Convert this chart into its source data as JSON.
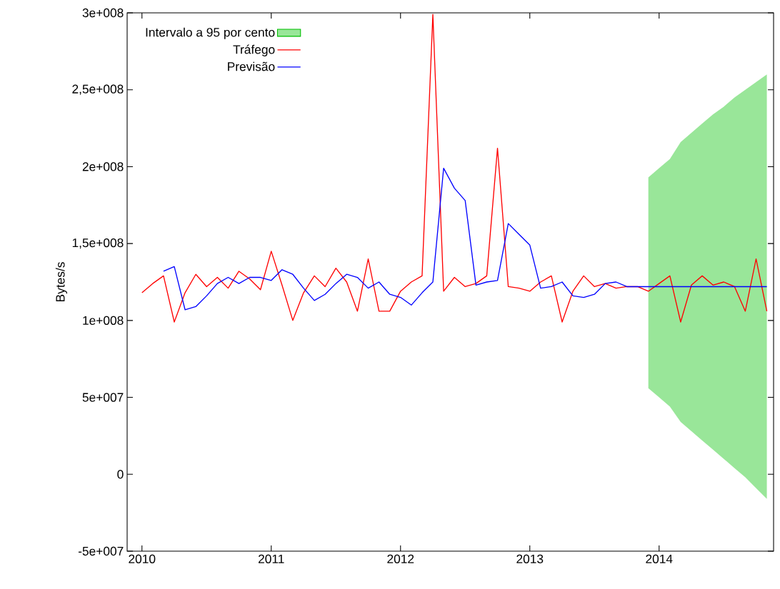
{
  "chart_data": {
    "type": "line",
    "ylabel": "Bytes/s",
    "xlim": [
      "2009-11-20",
      "2014-11-20"
    ],
    "xticks": [
      {
        "value": "2010-01",
        "label": "2010"
      },
      {
        "value": "2011-01",
        "label": "2011"
      },
      {
        "value": "2012-01",
        "label": "2012"
      },
      {
        "value": "2013-01",
        "label": "2013"
      },
      {
        "value": "2014-01",
        "label": "2014"
      }
    ],
    "ylim": [
      -50000000.0,
      300000000.0
    ],
    "yticks": [
      {
        "value": -50000000.0,
        "label": "-5e+007"
      },
      {
        "value": 0,
        "label": "0"
      },
      {
        "value": 50000000.0,
        "label": "5e+007"
      },
      {
        "value": 100000000.0,
        "label": "1e+008"
      },
      {
        "value": 150000000.0,
        "label": "1,5e+008"
      },
      {
        "value": 200000000.0,
        "label": "2e+008"
      },
      {
        "value": 250000000.0,
        "label": "2,5e+008"
      },
      {
        "value": 300000000.0,
        "label": "3e+008"
      }
    ],
    "legend": "top left",
    "grid": false,
    "series": [
      {
        "name": "Intervalo a 95 por cento",
        "type": "area",
        "color": "#99e699",
        "x": [
          "2013-12",
          "2014-01",
          "2014-02",
          "2014-03",
          "2014-04",
          "2014-05",
          "2014-06",
          "2014-07",
          "2014-08",
          "2014-09",
          "2014-10",
          "2014-11"
        ],
        "values": [
          null,
          null,
          null,
          null,
          null,
          null,
          null,
          null,
          null,
          null,
          null,
          null
        ],
        "lower": [
          56000000.0,
          50000000.0,
          44000000.0,
          34000000.0,
          28000000.0,
          22000000.0,
          16000000.0,
          10000000.0,
          4000000.0,
          -2000000.0,
          -9000000.0,
          -16000000.0
        ],
        "upper": [
          193000000.0,
          199000000.0,
          205000000.0,
          216000000.0,
          222000000.0,
          228000000.0,
          234000000.0,
          239000000.0,
          245000000.0,
          250000000.0,
          255000000.0,
          260000000.0
        ]
      },
      {
        "name": "Tráfego",
        "color": "#ff0000",
        "x": [
          "2010-01",
          "2010-02",
          "2010-03",
          "2010-04",
          "2010-05",
          "2010-06",
          "2010-07",
          "2010-08",
          "2010-09",
          "2010-10",
          "2010-11",
          "2010-12",
          "2011-01",
          "2011-02",
          "2011-03",
          "2011-04",
          "2011-05",
          "2011-06",
          "2011-07",
          "2011-08",
          "2011-09",
          "2011-10",
          "2011-11",
          "2011-12",
          "2012-01",
          "2012-02",
          "2012-03",
          "2012-04",
          "2012-05",
          "2012-06",
          "2012-07",
          "2012-08",
          "2012-09",
          "2012-10",
          "2012-11",
          "2012-12",
          "2013-01",
          "2013-02",
          "2013-03",
          "2013-04",
          "2013-05",
          "2013-06",
          "2013-07",
          "2013-08",
          "2013-09",
          "2013-10",
          "2013-11",
          "2013-12",
          "2014-01",
          "2014-02",
          "2014-03",
          "2014-04",
          "2014-05",
          "2014-06",
          "2014-07",
          "2014-08",
          "2014-09",
          "2014-10",
          "2014-11"
        ],
        "values": [
          118000000.0,
          124000000.0,
          129000000.0,
          99000000.0,
          118000000.0,
          130000000.0,
          122000000.0,
          128000000.0,
          121000000.0,
          132000000.0,
          127000000.0,
          120000000.0,
          145000000.0,
          123000000.0,
          100000000.0,
          118000000.0,
          129000000.0,
          122000000.0,
          134000000.0,
          125000000.0,
          106000000.0,
          140000000.0,
          106000000.0,
          106000000.0,
          119000000.0,
          125000000.0,
          129000000.0,
          299000000.0,
          119000000.0,
          128000000.0,
          122000000.0,
          124000000.0,
          129000000.0,
          212000000.0,
          122000000.0,
          121000000.0,
          119000000.0,
          125000000.0,
          129000000.0,
          99000000.0,
          119000000.0,
          129000000.0,
          122000000.0,
          124000000.0,
          121000000.0,
          122000000.0,
          122000000.0,
          119000000.0,
          124000000.0,
          129000000.0,
          99000000.0,
          123000000.0,
          129000000.0,
          123000000.0,
          125000000.0,
          122000000.0,
          106000000.0,
          140000000.0,
          106000000.0
        ]
      },
      {
        "name": "Previsão",
        "color": "#0000ff",
        "x": [
          "2010-03",
          "2010-04",
          "2010-05",
          "2010-06",
          "2010-07",
          "2010-08",
          "2010-09",
          "2010-10",
          "2010-11",
          "2010-12",
          "2011-01",
          "2011-02",
          "2011-03",
          "2011-04",
          "2011-05",
          "2011-06",
          "2011-07",
          "2011-08",
          "2011-09",
          "2011-10",
          "2011-11",
          "2011-12",
          "2012-01",
          "2012-02",
          "2012-03",
          "2012-04",
          "2012-05",
          "2012-06",
          "2012-07",
          "2012-08",
          "2012-09",
          "2012-10",
          "2012-11",
          "2012-12",
          "2013-01",
          "2013-02",
          "2013-03",
          "2013-04",
          "2013-05",
          "2013-06",
          "2013-07",
          "2013-08",
          "2013-09",
          "2013-10",
          "2013-11",
          "2013-12",
          "2014-01",
          "2014-02",
          "2014-03",
          "2014-04",
          "2014-05",
          "2014-06",
          "2014-07",
          "2014-08",
          "2014-09",
          "2014-10",
          "2014-11"
        ],
        "values": [
          132000000.0,
          135000000.0,
          107000000.0,
          109000000.0,
          116000000.0,
          124000000.0,
          128000000.0,
          124000000.0,
          128000000.0,
          128000000.0,
          126000000.0,
          133000000.0,
          130000000.0,
          121000000.0,
          113000000.0,
          117000000.0,
          124000000.0,
          130000000.0,
          128000000.0,
          121000000.0,
          125000000.0,
          117000000.0,
          115000000.0,
          110000000.0,
          118000000.0,
          125000000.0,
          199000000.0,
          186000000.0,
          178000000.0,
          123000000.0,
          125000000.0,
          126000000.0,
          163000000.0,
          156000000.0,
          149000000.0,
          121000000.0,
          122000000.0,
          125000000.0,
          116000000.0,
          115000000.0,
          117000000.0,
          124000000.0,
          125000000.0,
          122000000.0,
          122000000.0,
          122000000.0,
          122000000.0,
          122000000.0,
          122000000.0,
          122000000.0,
          122000000.0,
          122000000.0,
          122000000.0,
          122000000.0,
          122000000.0,
          122000000.0,
          122000000.0
        ]
      }
    ]
  }
}
